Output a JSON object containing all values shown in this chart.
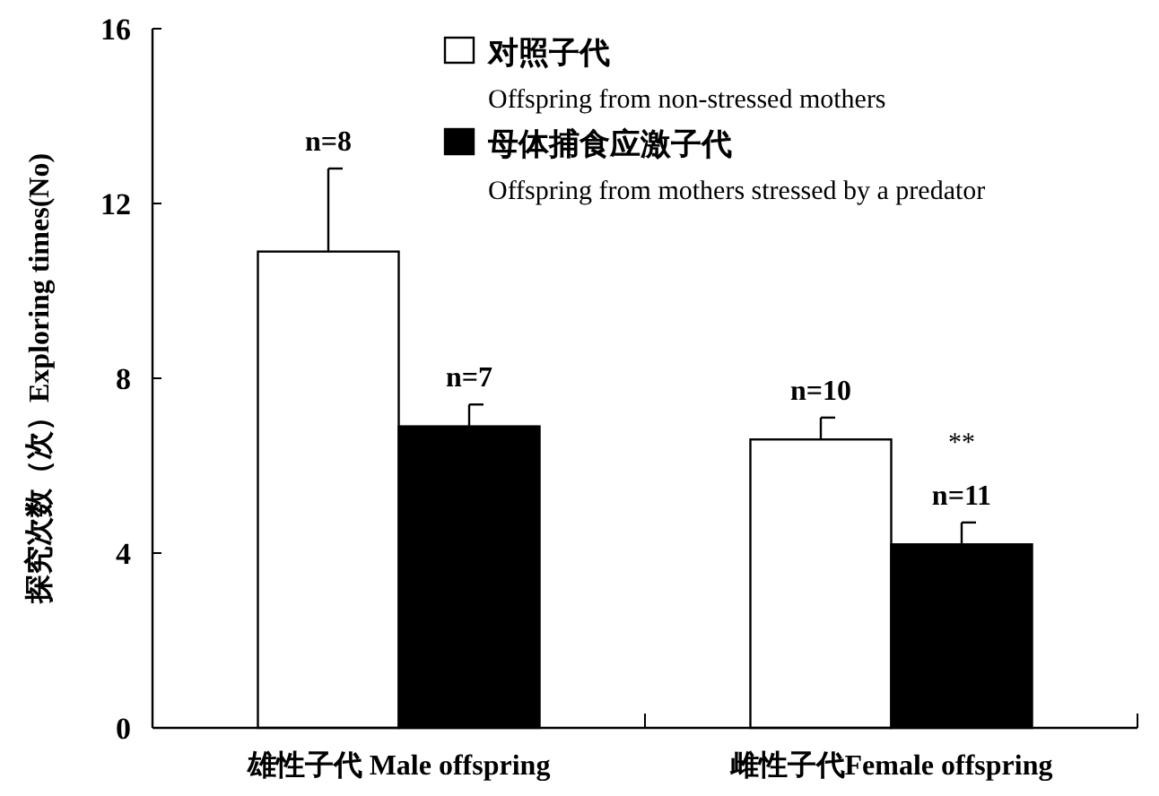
{
  "chart_data": {
    "type": "bar",
    "ylabel": "探究次数（次）Exploring times(No)",
    "categories": [
      "雄性子代 Male offspring",
      "雌性子代Female offspring"
    ],
    "series": [
      {
        "name": "对照子代\nOffspring from non-stressed mothers",
        "color": "#ffffff",
        "values": [
          10.9,
          6.6
        ],
        "errors": [
          [
            10.9,
            12.8
          ],
          [
            6.6,
            7.1
          ]
        ]
      },
      {
        "name": "母体捕食应激子代\nOffspring from mothers stressed by a predator",
        "color": "#000000",
        "values": [
          6.9,
          4.2
        ],
        "errors": [
          [
            6.9,
            7.4
          ],
          [
            4.2,
            4.7
          ]
        ]
      }
    ],
    "ylim": [
      0,
      16
    ],
    "yticks": [
      0,
      4,
      8,
      12,
      16
    ],
    "legend": "top right",
    "grid": false,
    "annotations": [
      "n=8",
      "n=7",
      "n=10",
      "n=11",
      "**"
    ]
  }
}
